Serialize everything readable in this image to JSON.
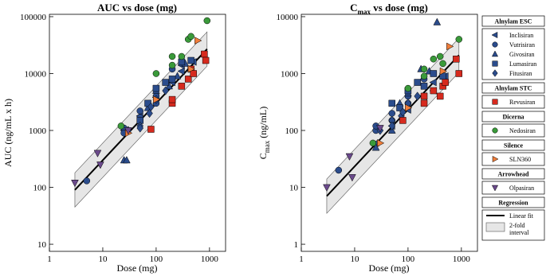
{
  "chart_data": [
    {
      "type": "scatter",
      "title": "AUC vs dose (mg)",
      "xlabel": "Dose (mg)",
      "ylabel": "AUC (ng/mL x h)",
      "xscale": "log",
      "yscale": "log",
      "xlim": [
        1,
        2000
      ],
      "ylim": [
        7.5,
        110000
      ],
      "xticks": [
        1,
        10,
        100,
        1000
      ],
      "yticks": [
        10,
        100,
        1000,
        10000,
        100000
      ],
      "fit": {
        "group": "Regression",
        "name": "Linear fit",
        "band_name": "2-fold interval",
        "color": "#000000",
        "band_color": "#e6e6e6",
        "x": [
          3,
          900
        ],
        "values": [
          90,
          27000
        ],
        "lower": [
          45,
          13500
        ],
        "upper": [
          180,
          54000
        ]
      },
      "series": [
        {
          "group": "Alnylam ESC",
          "name": "Inclisiran",
          "marker": "tri-left",
          "color": "#2b4c8c",
          "x": [
            25,
            50,
            100,
            200,
            300,
            300,
            500
          ],
          "values": [
            1000,
            1800,
            3800,
            7000,
            11000,
            14000,
            16000
          ]
        },
        {
          "group": "Alnylam ESC",
          "name": "Vutrisiran",
          "marker": "circle",
          "color": "#2b4c8c",
          "x": [
            5,
            25,
            25,
            50,
            50,
            100,
            100,
            200
          ],
          "values": [
            130,
            1100,
            900,
            2200,
            1700,
            4000,
            3000,
            12000
          ]
        },
        {
          "group": "Alnylam ESC",
          "name": "Givosiran",
          "marker": "tri-up",
          "color": "#2b4c8c",
          "x": [
            25,
            28,
            70,
            100,
            175,
            250,
            350
          ],
          "values": [
            300,
            300,
            2500,
            5000,
            6000,
            9000,
            15000
          ]
        },
        {
          "group": "Alnylam ESC",
          "name": "Lumasiran",
          "marker": "square",
          "color": "#2b4c8c",
          "x": [
            50,
            70,
            100,
            150,
            200,
            300,
            450
          ],
          "values": [
            1500,
            3000,
            5500,
            7000,
            8000,
            16000,
            17000
          ]
        },
        {
          "group": "Alnylam ESC",
          "name": "Fitusiran",
          "marker": "diamond",
          "color": "#2b4c8c",
          "x": [
            30,
            50,
            50,
            75,
            80,
            100,
            150
          ],
          "values": [
            1000,
            1200,
            1100,
            2000,
            2600,
            3500,
            5000
          ]
        },
        {
          "group": "Alnylam STC",
          "name": "Revusiran",
          "marker": "square",
          "color": "#d62a1e",
          "x": [
            80,
            200,
            200,
            300,
            400,
            450,
            500,
            800,
            850
          ],
          "values": [
            1050,
            3000,
            3500,
            6000,
            8000,
            12000,
            10000,
            22000,
            17000
          ]
        },
        {
          "group": "Dicerna",
          "name": "Nedosiran",
          "marker": "circle",
          "color": "#3a9a3a",
          "x": [
            22,
            100,
            200,
            200,
            300,
            400,
            450,
            900
          ],
          "values": [
            1200,
            10000,
            14000,
            20000,
            20000,
            40000,
            45000,
            85000
          ]
        },
        {
          "group": "Silence",
          "name": "SLN360",
          "marker": "tri-right",
          "color": "#f07d3a",
          "x": [
            30,
            100,
            450,
            600
          ],
          "values": [
            900,
            3500,
            12000,
            38000
          ]
        },
        {
          "group": "Arrowhead",
          "name": "Olpasiran",
          "marker": "tri-down",
          "color": "#6b4a8c",
          "x": [
            3,
            8,
            9,
            30
          ],
          "values": [
            120,
            400,
            250,
            1000
          ]
        }
      ]
    },
    {
      "type": "scatter",
      "title": "C",
      "title_sub": "max",
      "title_rest": " vs dose (mg)",
      "xlabel": "Dose (mg)",
      "ylabel": "C",
      "ylabel_sub": "max",
      "ylabel_rest": " (ng/mL)",
      "xscale": "log",
      "yscale": "log",
      "xlim": [
        1,
        2000
      ],
      "ylim": [
        0.75,
        11000
      ],
      "xticks": [
        1,
        10,
        100,
        1000
      ],
      "yticks": [
        1,
        10,
        100,
        1000,
        10000
      ],
      "fit": {
        "color": "#000000",
        "band_color": "#e6e6e6",
        "x": [
          3,
          900
        ],
        "values": [
          7,
          2100
        ],
        "lower": [
          3.5,
          1050
        ],
        "upper": [
          14,
          4200
        ]
      },
      "series": [
        {
          "marker": "tri-left",
          "color": "#2b4c8c",
          "x": [
            25,
            50,
            100,
            200,
            300,
            300,
            500
          ],
          "values": [
            60,
            120,
            230,
            400,
            500,
            700,
            900
          ]
        },
        {
          "marker": "circle",
          "color": "#2b4c8c",
          "x": [
            5,
            25,
            25,
            50,
            50,
            100,
            100,
            200
          ],
          "values": [
            20,
            100,
            120,
            150,
            200,
            300,
            400,
            800
          ]
        },
        {
          "marker": "tri-up",
          "color": "#2b4c8c",
          "x": [
            25,
            50,
            70,
            100,
            175,
            250,
            350
          ],
          "values": [
            50,
            100,
            300,
            450,
            1200,
            1100,
            8000
          ]
        },
        {
          "marker": "square",
          "color": "#2b4c8c",
          "x": [
            50,
            70,
            100,
            150,
            200,
            300,
            450
          ],
          "values": [
            300,
            250,
            500,
            700,
            600,
            1000,
            900
          ]
        },
        {
          "marker": "diamond",
          "color": "#2b4c8c",
          "x": [
            30,
            50,
            50,
            75,
            80,
            100,
            150
          ],
          "values": [
            100,
            150,
            120,
            180,
            210,
            300,
            400
          ]
        },
        {
          "marker": "square",
          "color": "#d62a1e",
          "x": [
            80,
            200,
            200,
            300,
            400,
            450,
            500,
            800,
            900
          ],
          "values": [
            150,
            300,
            400,
            500,
            400,
            600,
            700,
            1800,
            1000
          ]
        },
        {
          "marker": "circle",
          "color": "#3a9a3a",
          "x": [
            22,
            100,
            200,
            200,
            300,
            400,
            450,
            900
          ],
          "values": [
            60,
            550,
            1200,
            900,
            1800,
            2000,
            1500,
            4000
          ]
        },
        {
          "marker": "tri-right",
          "color": "#f07d3a",
          "x": [
            30,
            100,
            450,
            600
          ],
          "values": [
            60,
            250,
            1100,
            3000
          ]
        },
        {
          "marker": "tri-down",
          "color": "#6b4a8c",
          "x": [
            3,
            8,
            9,
            30
          ],
          "values": [
            10,
            35,
            15,
            110
          ]
        }
      ]
    }
  ]
}
